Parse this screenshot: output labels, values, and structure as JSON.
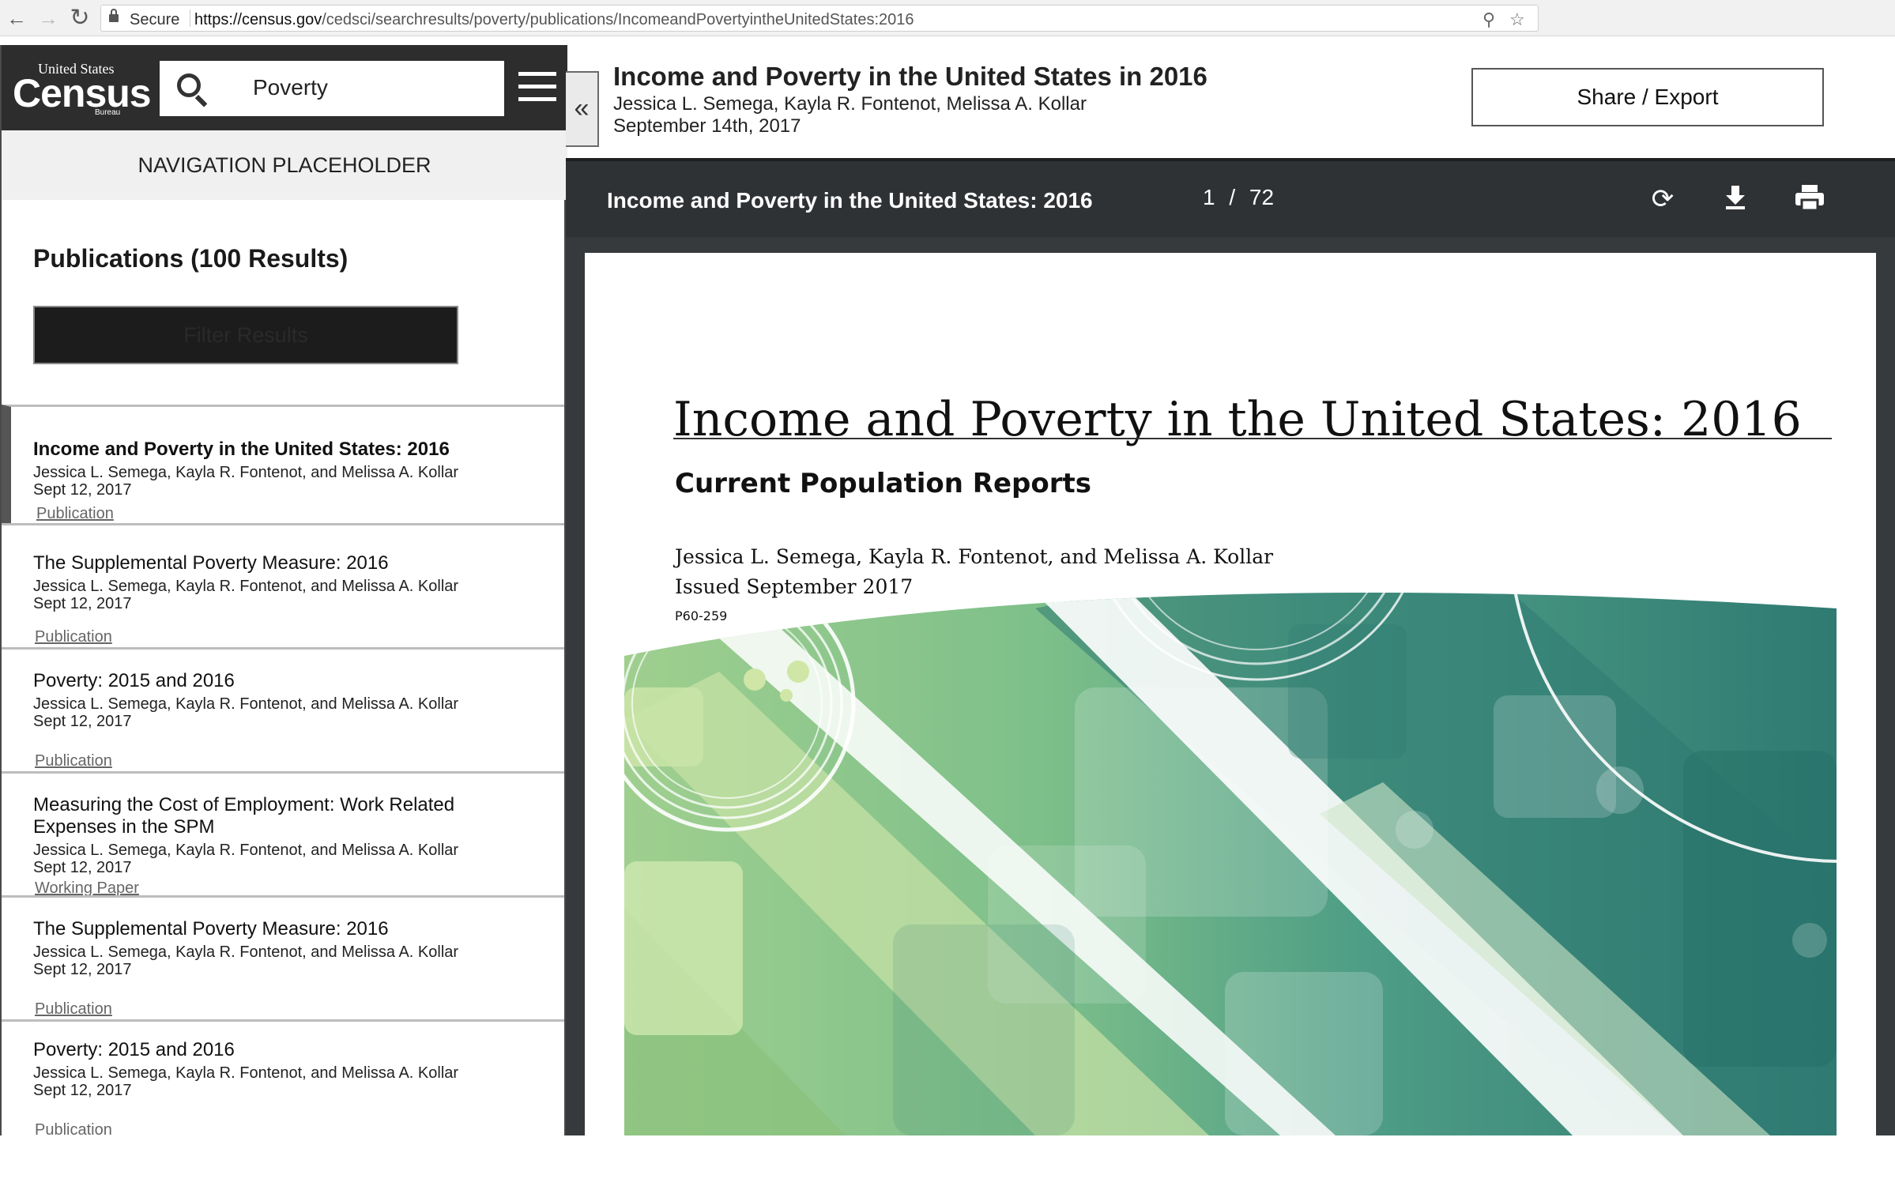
{
  "browser": {
    "secure_label": "Secure",
    "url_host": "https://census.gov",
    "url_path": "/cedsci/searchresults/poverty/publications/IncomeandPovertyintheUnitedStates:2016"
  },
  "logo": {
    "line1": "United States",
    "line2": "Census",
    "line3": "Bureau"
  },
  "search": {
    "value": "Poverty"
  },
  "nav_placeholder": "NAVIGATION PLACEHOLDER",
  "publications": {
    "heading": "Publications (100 Results)",
    "filter_label": "Filter Results",
    "results": [
      {
        "title": "Income and Poverty in the United States: 2016",
        "authors": "Jessica L. Semega, Kayla R. Fontenot, and Melissa A. Kollar",
        "date": "Sept 12, 2017",
        "kind": "Publication"
      },
      {
        "title": "The Supplemental Poverty Measure: 2016",
        "authors": "Jessica L. Semega, Kayla R. Fontenot, and Melissa A. Kollar",
        "date": "Sept 12, 2017",
        "kind": "Publication"
      },
      {
        "title": "Poverty: 2015 and 2016",
        "authors": "Jessica L. Semega, Kayla R. Fontenot, and Melissa A. Kollar",
        "date": "Sept 12, 2017",
        "kind": "Publication"
      },
      {
        "title": "Measuring the Cost of Employment: Work Related Expenses in the SPM",
        "authors": "Jessica L. Semega, Kayla R. Fontenot, and Melissa A. Kollar",
        "date": "Sept 12, 2017",
        "kind": "Working Paper"
      },
      {
        "title": "The Supplemental Poverty Measure: 2016",
        "authors": "Jessica L. Semega, Kayla R. Fontenot, and Melissa A. Kollar",
        "date": "Sept 12, 2017",
        "kind": "Publication"
      },
      {
        "title": "Poverty: 2015 and 2016",
        "authors": "Jessica L. Semega, Kayla R. Fontenot, and Melissa A. Kollar",
        "date": "Sept 12, 2017",
        "kind": "Publication"
      }
    ]
  },
  "detail": {
    "title": "Income and Poverty in the United States in 2016",
    "authors": "Jessica L. Semega, Kayla R. Fontenot, Melissa A. Kollar",
    "date": "September 14th, 2017",
    "share_label": "Share / Export"
  },
  "viewer": {
    "title": "Income and Poverty in the United States: 2016",
    "page_current": "1",
    "page_sep": "/",
    "page_total": "72"
  },
  "document": {
    "title": "Income and Poverty in the United States: 2016",
    "subtitle": "Current Population Reports",
    "authors": "Jessica L. Semega, Kayla R. Fontenot, and Melissa A. Kollar",
    "issued": "Issued September 2017",
    "number": "P60-259"
  },
  "colors": {
    "header_dark": "#2d2d2d",
    "viewer_bg": "#363a3d",
    "cover_green_light": "#a8d08d",
    "cover_green_mid": "#5fb38a",
    "cover_teal_dark": "#2e7c74"
  }
}
